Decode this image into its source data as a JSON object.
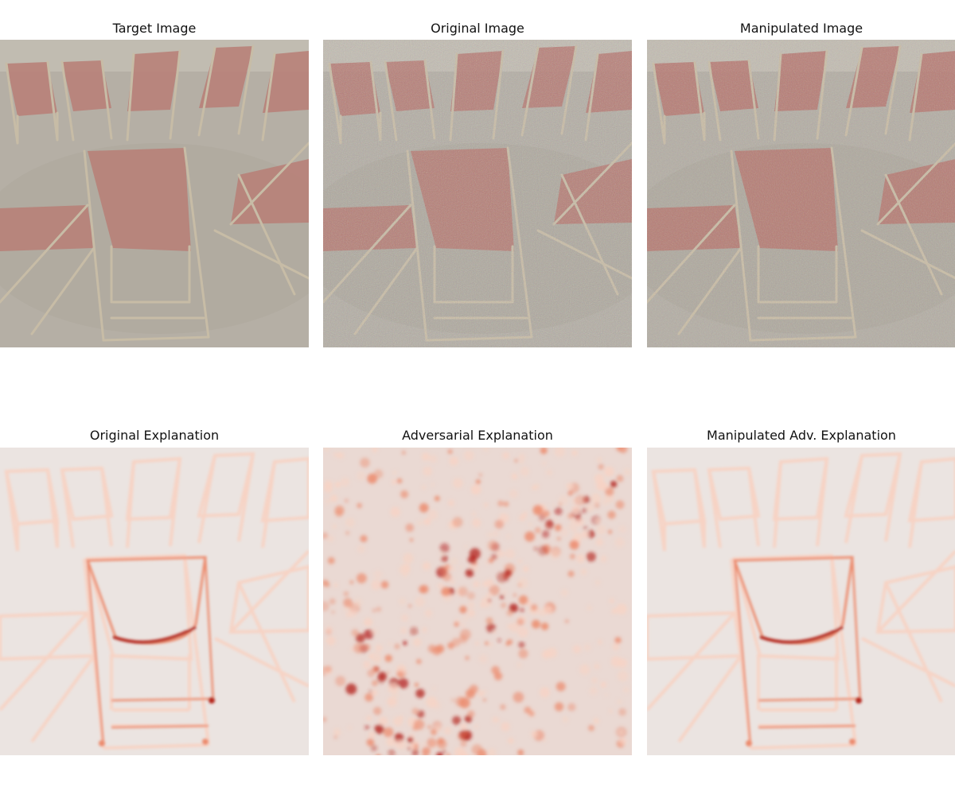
{
  "panels": [
    {
      "id": "target",
      "title": "Target Image",
      "kind": "photo",
      "noise": "none"
    },
    {
      "id": "original",
      "title": "Original Image",
      "kind": "photo",
      "noise": "heavy"
    },
    {
      "id": "manipulated",
      "title": "Manipulated Image",
      "kind": "photo",
      "noise": "medium"
    },
    {
      "id": "orig-expl",
      "title": "Original Explanation",
      "kind": "heatmap",
      "style": "edges"
    },
    {
      "id": "adv-expl",
      "title": "Adversarial Explanation",
      "kind": "heatmap",
      "style": "scatter"
    },
    {
      "id": "manip-expl",
      "title": "Manipulated Adv. Explanation",
      "kind": "heatmap",
      "style": "edges"
    }
  ],
  "colors": {
    "floor": "#b4aea4",
    "canvas_red": "#b86e68",
    "wood": "#cdbfa6",
    "heat_light": "#f7d3c4",
    "heat_mid": "#ec8b6d",
    "heat_dark": "#b5251f",
    "heat_bg": "#ebe4e1"
  }
}
